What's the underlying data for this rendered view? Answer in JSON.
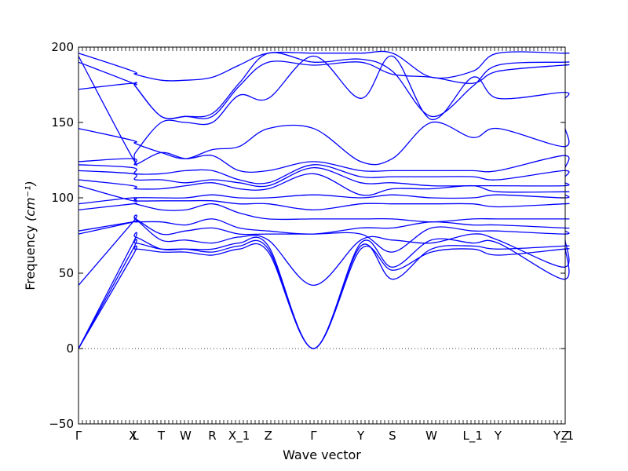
{
  "chart_data": {
    "type": "line",
    "title": "",
    "xlabel": "Wave vector",
    "ylabel": "Frequency ",
    "ylabel_unit": "(cm⁻¹)",
    "ylim": [
      -50,
      200
    ],
    "yticks": [
      -50,
      0,
      50,
      100,
      150,
      200
    ],
    "grid": false,
    "zero_line": {
      "y": 0,
      "style": "dotted"
    },
    "line_color": "#0000ff",
    "path_positions": [
      0,
      0.112,
      0.117,
      0.17,
      0.22,
      0.275,
      0.33,
      0.39,
      0.483,
      0.58,
      0.645,
      0.725,
      0.81,
      0.862,
      0.997,
      1.0
    ],
    "xticks": [
      {
        "label": "Γ",
        "pos": 0.0
      },
      {
        "label": "X",
        "pos": 0.112
      },
      {
        "label": "L",
        "pos": 0.117
      },
      {
        "label": "T",
        "pos": 0.17
      },
      {
        "label": "W",
        "pos": 0.22
      },
      {
        "label": "R",
        "pos": 0.275
      },
      {
        "label": "X_1",
        "pos": 0.33
      },
      {
        "label": "Z",
        "pos": 0.39
      },
      {
        "label": "Γ",
        "pos": 0.483
      },
      {
        "label": "Y",
        "pos": 0.58
      },
      {
        "label": "S",
        "pos": 0.645
      },
      {
        "label": "W",
        "pos": 0.725
      },
      {
        "label": "L_1",
        "pos": 0.81
      },
      {
        "label": "Y",
        "pos": 0.862
      },
      {
        "label": "Y_1",
        "pos": 0.997
      },
      {
        "label": "Z",
        "pos": 1.0
      }
    ],
    "series": [
      {
        "values": [
          0,
          62,
          66,
          64,
          64,
          62,
          66,
          64,
          0,
          66,
          52,
          64,
          66,
          62,
          66,
          66
        ]
      },
      {
        "values": [
          0,
          66,
          70,
          66,
          66,
          64,
          68,
          66,
          0,
          68,
          46,
          66,
          68,
          66,
          68,
          68
        ]
      },
      {
        "values": [
          0,
          70,
          74,
          66,
          66,
          66,
          70,
          68,
          0,
          70,
          54,
          72,
          70,
          70,
          46,
          67
        ]
      },
      {
        "values": [
          42,
          84,
          86,
          72,
          72,
          70,
          74,
          72,
          42,
          72,
          72,
          70,
          76,
          72,
          54,
          72
        ]
      },
      {
        "values": [
          76,
          84,
          86,
          76,
          78,
          80,
          76,
          76,
          76,
          76,
          64,
          80,
          78,
          78,
          76,
          78
        ]
      },
      {
        "values": [
          78,
          84,
          84,
          84,
          82,
          86,
          80,
          78,
          76,
          80,
          80,
          84,
          82,
          82,
          80,
          80
        ]
      },
      {
        "values": [
          92,
          96,
          96,
          92,
          92,
          96,
          90,
          86,
          86,
          86,
          86,
          84,
          86,
          86,
          86,
          86
        ]
      },
      {
        "values": [
          96,
          100,
          98,
          98,
          98,
          98,
          96,
          96,
          92,
          96,
          96,
          96,
          96,
          94,
          96,
          96
        ]
      },
      {
        "values": [
          108,
          98,
          100,
          100,
          100,
          102,
          100,
          100,
          102,
          100,
          102,
          100,
          100,
          102,
          100,
          102
        ]
      },
      {
        "values": [
          112,
          108,
          106,
          106,
          108,
          110,
          106,
          106,
          116,
          102,
          106,
          106,
          108,
          104,
          104,
          104
        ]
      },
      {
        "values": [
          118,
          116,
          112,
          112,
          110,
          112,
          110,
          108,
          120,
          110,
          110,
          108,
          108,
          108,
          108,
          110
        ]
      },
      {
        "values": [
          122,
          120,
          116,
          116,
          118,
          118,
          112,
          110,
          122,
          114,
          114,
          114,
          114,
          112,
          118,
          114
        ]
      },
      {
        "values": [
          124,
          126,
          122,
          130,
          126,
          128,
          118,
          118,
          124,
          118,
          118,
          118,
          118,
          118,
          128,
          120
        ]
      },
      {
        "values": [
          146,
          138,
          136,
          130,
          126,
          132,
          134,
          146,
          146,
          124,
          126,
          150,
          140,
          146,
          134,
          146
        ]
      },
      {
        "values": [
          172,
          176,
          174,
          154,
          154,
          154,
          174,
          190,
          188,
          190,
          182,
          180,
          176,
          184,
          188,
          188
        ]
      },
      {
        "values": [
          190,
          176,
          174,
          154,
          154,
          156,
          176,
          196,
          190,
          192,
          184,
          154,
          174,
          188,
          190,
          190
        ]
      },
      {
        "values": [
          194,
          126,
          130,
          150,
          150,
          150,
          168,
          166,
          194,
          166,
          194,
          152,
          180,
          166,
          170,
          166
        ]
      },
      {
        "values": [
          196,
          184,
          182,
          178,
          178,
          180,
          188,
          196,
          196,
          196,
          196,
          180,
          184,
          196,
          196,
          196
        ]
      }
    ]
  }
}
